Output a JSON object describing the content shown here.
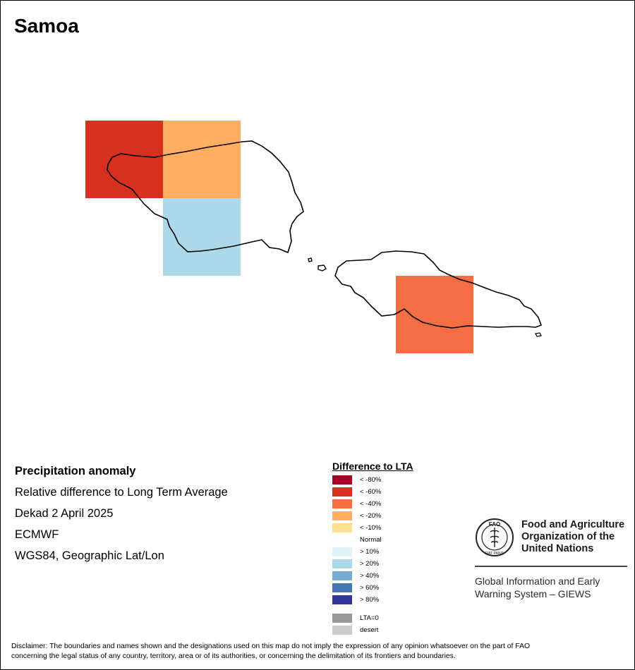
{
  "map": {
    "title": "Samoa",
    "grid_cells": [
      {
        "id": "nw-west",
        "color": "#d7301f",
        "category": "< -60%"
      },
      {
        "id": "nw-east",
        "color": "#fdae61",
        "category": "< -20%"
      },
      {
        "id": "sw",
        "color": "#abd9e9",
        "category": "> 20%"
      },
      {
        "id": "se",
        "color": "#f46d43",
        "category": "< -40%"
      }
    ]
  },
  "info": {
    "heading": "Precipitation anomaly",
    "line1": "Relative difference to Long Term Average",
    "line2": "Dekad 2 April 2025",
    "line3": "ECMWF",
    "line4": "WGS84, Geographic Lat/Lon"
  },
  "legend": {
    "title": "Difference to LTA",
    "items": [
      {
        "label": "< -80%",
        "color": "#a50026"
      },
      {
        "label": "< -60%",
        "color": "#d7301f"
      },
      {
        "label": "< -40%",
        "color": "#f46d43"
      },
      {
        "label": "< -20%",
        "color": "#fdae61"
      },
      {
        "label": "< -10%",
        "color": "#fee090"
      },
      {
        "label": "Normal",
        "color": "#ffffff"
      },
      {
        "label": "> 10%",
        "color": "#e0f3f8"
      },
      {
        "label": "> 20%",
        "color": "#abd9e9"
      },
      {
        "label": "> 40%",
        "color": "#74add1"
      },
      {
        "label": "> 60%",
        "color": "#4575b4"
      },
      {
        "label": "> 80%",
        "color": "#313695"
      },
      {
        "label": "LTA=0",
        "color": "#999999"
      },
      {
        "label": "desert",
        "color": "#cccccc"
      }
    ]
  },
  "fao": {
    "name_line1": "Food and Agriculture",
    "name_line2": "Organization of the",
    "name_line3": "United Nations",
    "giews_line1": "Global Information and Early",
    "giews_line2": "Warning System – GIEWS",
    "logo_letters": "FAO",
    "logo_motto": "FIAT PANIS"
  },
  "disclaimer": {
    "line1": "Disclaimer: The boundaries and names shown and the designations used on this map do not imply the expression of any opinion whatsoever on the part of FAO",
    "line2": "concerning the legal status of any country, territory, area or of its authorities, or concerning the delimitation of its frontiers and boundaries."
  }
}
